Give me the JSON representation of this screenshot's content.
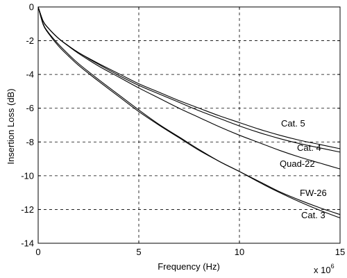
{
  "chart_data": {
    "type": "line",
    "title": "",
    "xlabel": "Frequency (Hz)",
    "ylabel": "Insertion Loss (dB)",
    "x_multiplier": "x 10",
    "x_multiplier_exp": "6",
    "xlim": [
      0,
      15
    ],
    "ylim": [
      -14,
      0
    ],
    "xticks": [
      "0",
      "5",
      "10",
      "15"
    ],
    "yticks": [
      "0",
      "-2",
      "-4",
      "-6",
      "-8",
      "-10",
      "-12",
      "-14"
    ],
    "grid": true,
    "x": [
      0,
      0.25,
      0.5,
      1,
      1.5,
      2,
      3,
      4,
      5,
      6,
      7,
      8,
      9,
      10,
      11,
      12,
      13,
      14,
      15
    ],
    "series": [
      {
        "name": "Cat. 5",
        "values": [
          0,
          -0.85,
          -1.25,
          -1.85,
          -2.3,
          -2.7,
          -3.35,
          -3.95,
          -4.55,
          -5.05,
          -5.55,
          -6.0,
          -6.45,
          -6.85,
          -7.25,
          -7.6,
          -7.9,
          -8.15,
          -8.4
        ]
      },
      {
        "name": "Cat. 4",
        "values": [
          0,
          -0.85,
          -1.25,
          -1.85,
          -2.3,
          -2.7,
          -3.4,
          -4.05,
          -4.65,
          -5.15,
          -5.65,
          -6.15,
          -6.6,
          -7.05,
          -7.45,
          -7.8,
          -8.1,
          -8.35,
          -8.6
        ]
      },
      {
        "name": "Quad-22",
        "values": [
          0,
          -0.85,
          -1.25,
          -1.85,
          -2.32,
          -2.75,
          -3.5,
          -4.15,
          -4.8,
          -5.4,
          -6.0,
          -6.55,
          -7.1,
          -7.6,
          -8.05,
          -8.5,
          -8.9,
          -9.25,
          -9.6
        ]
      },
      {
        "name": "FW-26",
        "values": [
          0,
          -1.0,
          -1.5,
          -2.2,
          -2.8,
          -3.35,
          -4.3,
          -5.2,
          -6.1,
          -6.95,
          -7.7,
          -8.45,
          -9.15,
          -9.75,
          -10.35,
          -10.95,
          -11.45,
          -11.9,
          -12.3
        ]
      },
      {
        "name": "Cat. 3",
        "values": [
          0,
          -1.05,
          -1.55,
          -2.3,
          -2.9,
          -3.45,
          -4.4,
          -5.3,
          -6.2,
          -7.0,
          -7.75,
          -8.5,
          -9.15,
          -9.75,
          -10.4,
          -11.0,
          -11.55,
          -12.05,
          -12.5
        ]
      }
    ]
  }
}
